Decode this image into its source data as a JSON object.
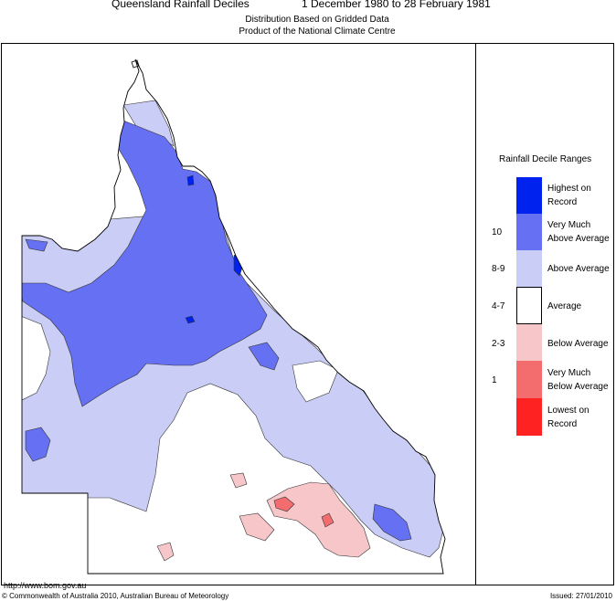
{
  "header": {
    "title": "Queensland Rainfall Deciles",
    "period": "1 December 1980 to 28 February 1981",
    "subtitle_1": "Distribution Based on Gridded Data",
    "subtitle_2": "Product of the National Climate Centre"
  },
  "legend": {
    "title": "Rainfall Decile Ranges",
    "items": [
      {
        "range": "",
        "label_1": "Highest on",
        "label_2": "Record",
        "color": "#0022ee"
      },
      {
        "range": "10",
        "label_1": "Very Much",
        "label_2": "Above Average",
        "color": "#6670f2"
      },
      {
        "range": "8-9",
        "label_1": "Above Average",
        "label_2": "",
        "color": "#cacdf5"
      },
      {
        "range": "4-7",
        "label_1": "Average",
        "label_2": "",
        "color": "#ffffff"
      },
      {
        "range": "2-3",
        "label_1": "Below Average",
        "label_2": "",
        "color": "#f7c6c8"
      },
      {
        "range": "1",
        "label_1": "Very Much",
        "label_2": "Below Average",
        "color": "#f36d6f"
      },
      {
        "range": "",
        "label_1": "Lowest on",
        "label_2": "Record",
        "color": "#ff2222"
      }
    ]
  },
  "footer": {
    "url": "http://www.bom.gov.au",
    "copyright": "© Commonwealth of Australia 2010, Australian Bureau of Meteorology",
    "issued": "Issued: 27/01/2010"
  }
}
